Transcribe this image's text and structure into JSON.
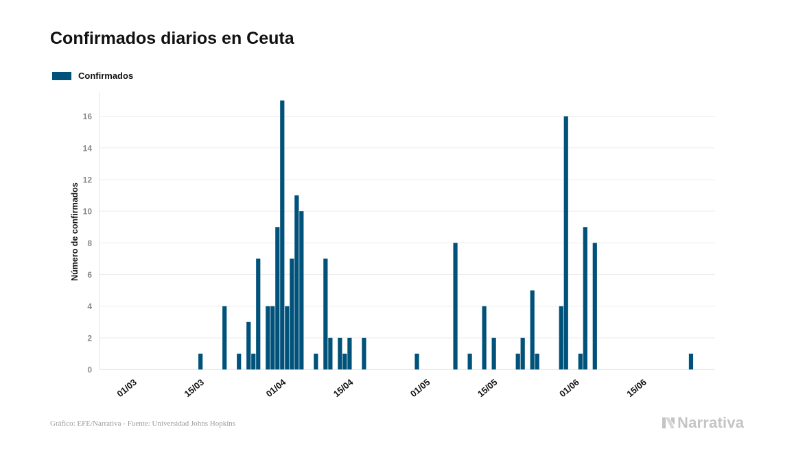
{
  "title": "Confirmados diarios en Ceuta",
  "legend": {
    "label": "Confirmados",
    "color": "#00527a"
  },
  "footer": {
    "source": "Gráfico: EFE/Narrativa - Fuente: Universidad Johns Hopkins",
    "brand": "Narrativa",
    "brand_icon": "narrativa-logo-icon"
  },
  "chart_data": {
    "type": "bar",
    "title": "Confirmados diarios en Ceuta",
    "xlabel": "",
    "ylabel": "Número de confirmados",
    "ylim": [
      0,
      17.5
    ],
    "yticks": [
      0,
      2,
      4,
      6,
      8,
      10,
      12,
      14,
      16
    ],
    "x_range": [
      "2020-02-23",
      "2020-06-30"
    ],
    "xtick_labels": [
      {
        "date": "2020-03-01",
        "label": "01/03"
      },
      {
        "date": "2020-03-15",
        "label": "15/03"
      },
      {
        "date": "2020-04-01",
        "label": "01/04"
      },
      {
        "date": "2020-04-15",
        "label": "15/04"
      },
      {
        "date": "2020-05-01",
        "label": "01/05"
      },
      {
        "date": "2020-05-15",
        "label": "15/05"
      },
      {
        "date": "2020-06-01",
        "label": "01/06"
      },
      {
        "date": "2020-06-15",
        "label": "15/06"
      }
    ],
    "grid": true,
    "legend_position": "top-left",
    "series": [
      {
        "name": "Confirmados",
        "color": "#00527a",
        "points": [
          {
            "date": "2020-03-15",
            "value": 1
          },
          {
            "date": "2020-03-20",
            "value": 4
          },
          {
            "date": "2020-03-23",
            "value": 1
          },
          {
            "date": "2020-03-25",
            "value": 3
          },
          {
            "date": "2020-03-26",
            "value": 1
          },
          {
            "date": "2020-03-27",
            "value": 7
          },
          {
            "date": "2020-03-29",
            "value": 4
          },
          {
            "date": "2020-03-30",
            "value": 4
          },
          {
            "date": "2020-03-31",
            "value": 9
          },
          {
            "date": "2020-04-01",
            "value": 17
          },
          {
            "date": "2020-04-02",
            "value": 4
          },
          {
            "date": "2020-04-03",
            "value": 7
          },
          {
            "date": "2020-04-04",
            "value": 11
          },
          {
            "date": "2020-04-05",
            "value": 10
          },
          {
            "date": "2020-04-08",
            "value": 1
          },
          {
            "date": "2020-04-10",
            "value": 7
          },
          {
            "date": "2020-04-11",
            "value": 2
          },
          {
            "date": "2020-04-13",
            "value": 2
          },
          {
            "date": "2020-04-14",
            "value": 1
          },
          {
            "date": "2020-04-15",
            "value": 2
          },
          {
            "date": "2020-04-18",
            "value": 2
          },
          {
            "date": "2020-04-29",
            "value": 1
          },
          {
            "date": "2020-05-07",
            "value": 8
          },
          {
            "date": "2020-05-10",
            "value": 1
          },
          {
            "date": "2020-05-13",
            "value": 4
          },
          {
            "date": "2020-05-15",
            "value": 2
          },
          {
            "date": "2020-05-20",
            "value": 1
          },
          {
            "date": "2020-05-21",
            "value": 2
          },
          {
            "date": "2020-05-23",
            "value": 5
          },
          {
            "date": "2020-05-24",
            "value": 1
          },
          {
            "date": "2020-05-29",
            "value": 4
          },
          {
            "date": "2020-05-30",
            "value": 16
          },
          {
            "date": "2020-06-02",
            "value": 1
          },
          {
            "date": "2020-06-03",
            "value": 9
          },
          {
            "date": "2020-06-05",
            "value": 8
          },
          {
            "date": "2020-06-25",
            "value": 1
          }
        ]
      }
    ]
  }
}
